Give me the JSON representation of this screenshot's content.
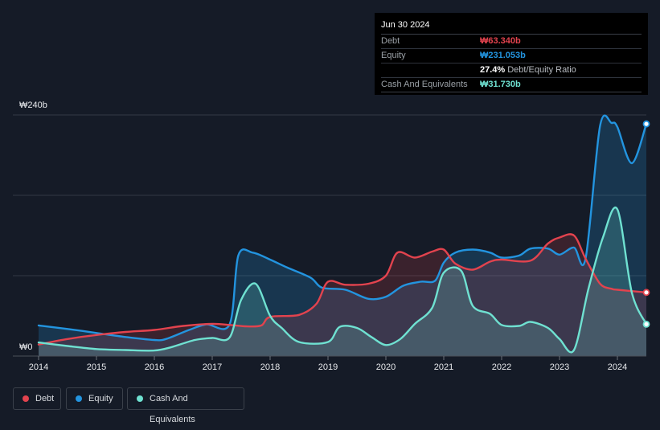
{
  "tooltip": {
    "date": "Jun 30 2024",
    "debt_label": "Debt",
    "debt_value": "₩63.340b",
    "equity_label": "Equity",
    "equity_value": "₩231.053b",
    "ratio_value": "27.4%",
    "ratio_label": "Debt/Equity Ratio",
    "cash_label": "Cash And Equivalents",
    "cash_value": "₩31.730b"
  },
  "legend": {
    "debt": "Debt",
    "equity": "Equity",
    "cash": "Cash And Equivalents"
  },
  "colors": {
    "debt": "#e2434e",
    "equity": "#2394df",
    "cash": "#6fe1d1",
    "background": "#151b27",
    "grid": "#3a404a"
  },
  "chart_data": {
    "type": "area",
    "title": "",
    "y_top_label": "₩240b",
    "y_bottom_label": "₩0",
    "ylim": [
      0,
      240
    ],
    "xlim": [
      2014,
      2024.5
    ],
    "x_ticks": [
      {
        "value": 2014,
        "label": "2014"
      },
      {
        "value": 2015,
        "label": "2015"
      },
      {
        "value": 2016,
        "label": "2016"
      },
      {
        "value": 2017,
        "label": "2017"
      },
      {
        "value": 2018,
        "label": "2018"
      },
      {
        "value": 2019,
        "label": "2019"
      },
      {
        "value": 2020,
        "label": "2020"
      },
      {
        "value": 2021,
        "label": "2021"
      },
      {
        "value": 2022,
        "label": "2022"
      },
      {
        "value": 2023,
        "label": "2023"
      },
      {
        "value": 2024,
        "label": "2024"
      }
    ],
    "series": [
      {
        "name": "Equity",
        "key": "equity",
        "points": [
          [
            2014.0,
            30.5
          ],
          [
            2014.5,
            27
          ],
          [
            2015.0,
            23
          ],
          [
            2015.5,
            19
          ],
          [
            2016.0,
            16
          ],
          [
            2016.2,
            17
          ],
          [
            2016.6,
            26
          ],
          [
            2016.9,
            31.5
          ],
          [
            2017.3,
            31.5
          ],
          [
            2017.45,
            100
          ],
          [
            2017.7,
            103
          ],
          [
            2018.0,
            96
          ],
          [
            2018.3,
            88
          ],
          [
            2018.7,
            78
          ],
          [
            2018.9,
            68
          ],
          [
            2019.3,
            66
          ],
          [
            2019.7,
            57
          ],
          [
            2020.0,
            59
          ],
          [
            2020.3,
            70
          ],
          [
            2020.6,
            74
          ],
          [
            2020.85,
            75
          ],
          [
            2021.0,
            93
          ],
          [
            2021.2,
            103
          ],
          [
            2021.5,
            106
          ],
          [
            2021.8,
            103
          ],
          [
            2022.0,
            98
          ],
          [
            2022.3,
            100
          ],
          [
            2022.5,
            107
          ],
          [
            2022.8,
            107
          ],
          [
            2023.0,
            101
          ],
          [
            2023.25,
            108
          ],
          [
            2023.45,
            97
          ],
          [
            2023.7,
            229
          ],
          [
            2023.9,
            232
          ],
          [
            2024.0,
            228
          ],
          [
            2024.25,
            192
          ],
          [
            2024.5,
            231.05
          ]
        ]
      },
      {
        "name": "Debt",
        "key": "debt",
        "points": [
          [
            2014.0,
            11.5
          ],
          [
            2014.5,
            17
          ],
          [
            2015.0,
            21
          ],
          [
            2015.5,
            24
          ],
          [
            2016.0,
            26
          ],
          [
            2016.5,
            30
          ],
          [
            2017.0,
            32
          ],
          [
            2017.3,
            31
          ],
          [
            2017.6,
            29.5
          ],
          [
            2017.85,
            30.5
          ],
          [
            2018.0,
            39
          ],
          [
            2018.5,
            41
          ],
          [
            2018.8,
            52
          ],
          [
            2019.0,
            74
          ],
          [
            2019.3,
            71
          ],
          [
            2019.7,
            72
          ],
          [
            2020.0,
            80
          ],
          [
            2020.2,
            103
          ],
          [
            2020.5,
            98
          ],
          [
            2020.8,
            104
          ],
          [
            2021.0,
            106
          ],
          [
            2021.2,
            92
          ],
          [
            2021.5,
            86
          ],
          [
            2021.8,
            94
          ],
          [
            2022.0,
            96
          ],
          [
            2022.5,
            95
          ],
          [
            2022.8,
            112
          ],
          [
            2023.0,
            118
          ],
          [
            2023.25,
            120
          ],
          [
            2023.45,
            97
          ],
          [
            2023.7,
            72
          ],
          [
            2023.9,
            67
          ],
          [
            2024.0,
            66
          ],
          [
            2024.5,
            63.34
          ]
        ]
      },
      {
        "name": "Cash And Equivalents",
        "key": "cash",
        "points": [
          [
            2014.0,
            13.5
          ],
          [
            2014.5,
            10
          ],
          [
            2015.0,
            7
          ],
          [
            2015.5,
            6
          ],
          [
            2016.0,
            5.5
          ],
          [
            2016.3,
            9
          ],
          [
            2016.7,
            16
          ],
          [
            2017.0,
            18
          ],
          [
            2017.3,
            18.5
          ],
          [
            2017.5,
            56
          ],
          [
            2017.75,
            72
          ],
          [
            2018.0,
            40
          ],
          [
            2018.2,
            28
          ],
          [
            2018.5,
            14
          ],
          [
            2019.0,
            14
          ],
          [
            2019.2,
            29
          ],
          [
            2019.5,
            28
          ],
          [
            2019.75,
            19
          ],
          [
            2020.0,
            11
          ],
          [
            2020.25,
            17
          ],
          [
            2020.5,
            32
          ],
          [
            2020.8,
            48
          ],
          [
            2021.0,
            83
          ],
          [
            2021.3,
            85
          ],
          [
            2021.5,
            50
          ],
          [
            2021.8,
            42
          ],
          [
            2022.0,
            31
          ],
          [
            2022.3,
            30
          ],
          [
            2022.5,
            34
          ],
          [
            2022.8,
            28
          ],
          [
            2023.0,
            17
          ],
          [
            2023.25,
            6
          ],
          [
            2023.5,
            67
          ],
          [
            2023.75,
            118
          ],
          [
            2024.0,
            146
          ],
          [
            2024.25,
            63
          ],
          [
            2024.5,
            31.73
          ]
        ]
      }
    ]
  }
}
